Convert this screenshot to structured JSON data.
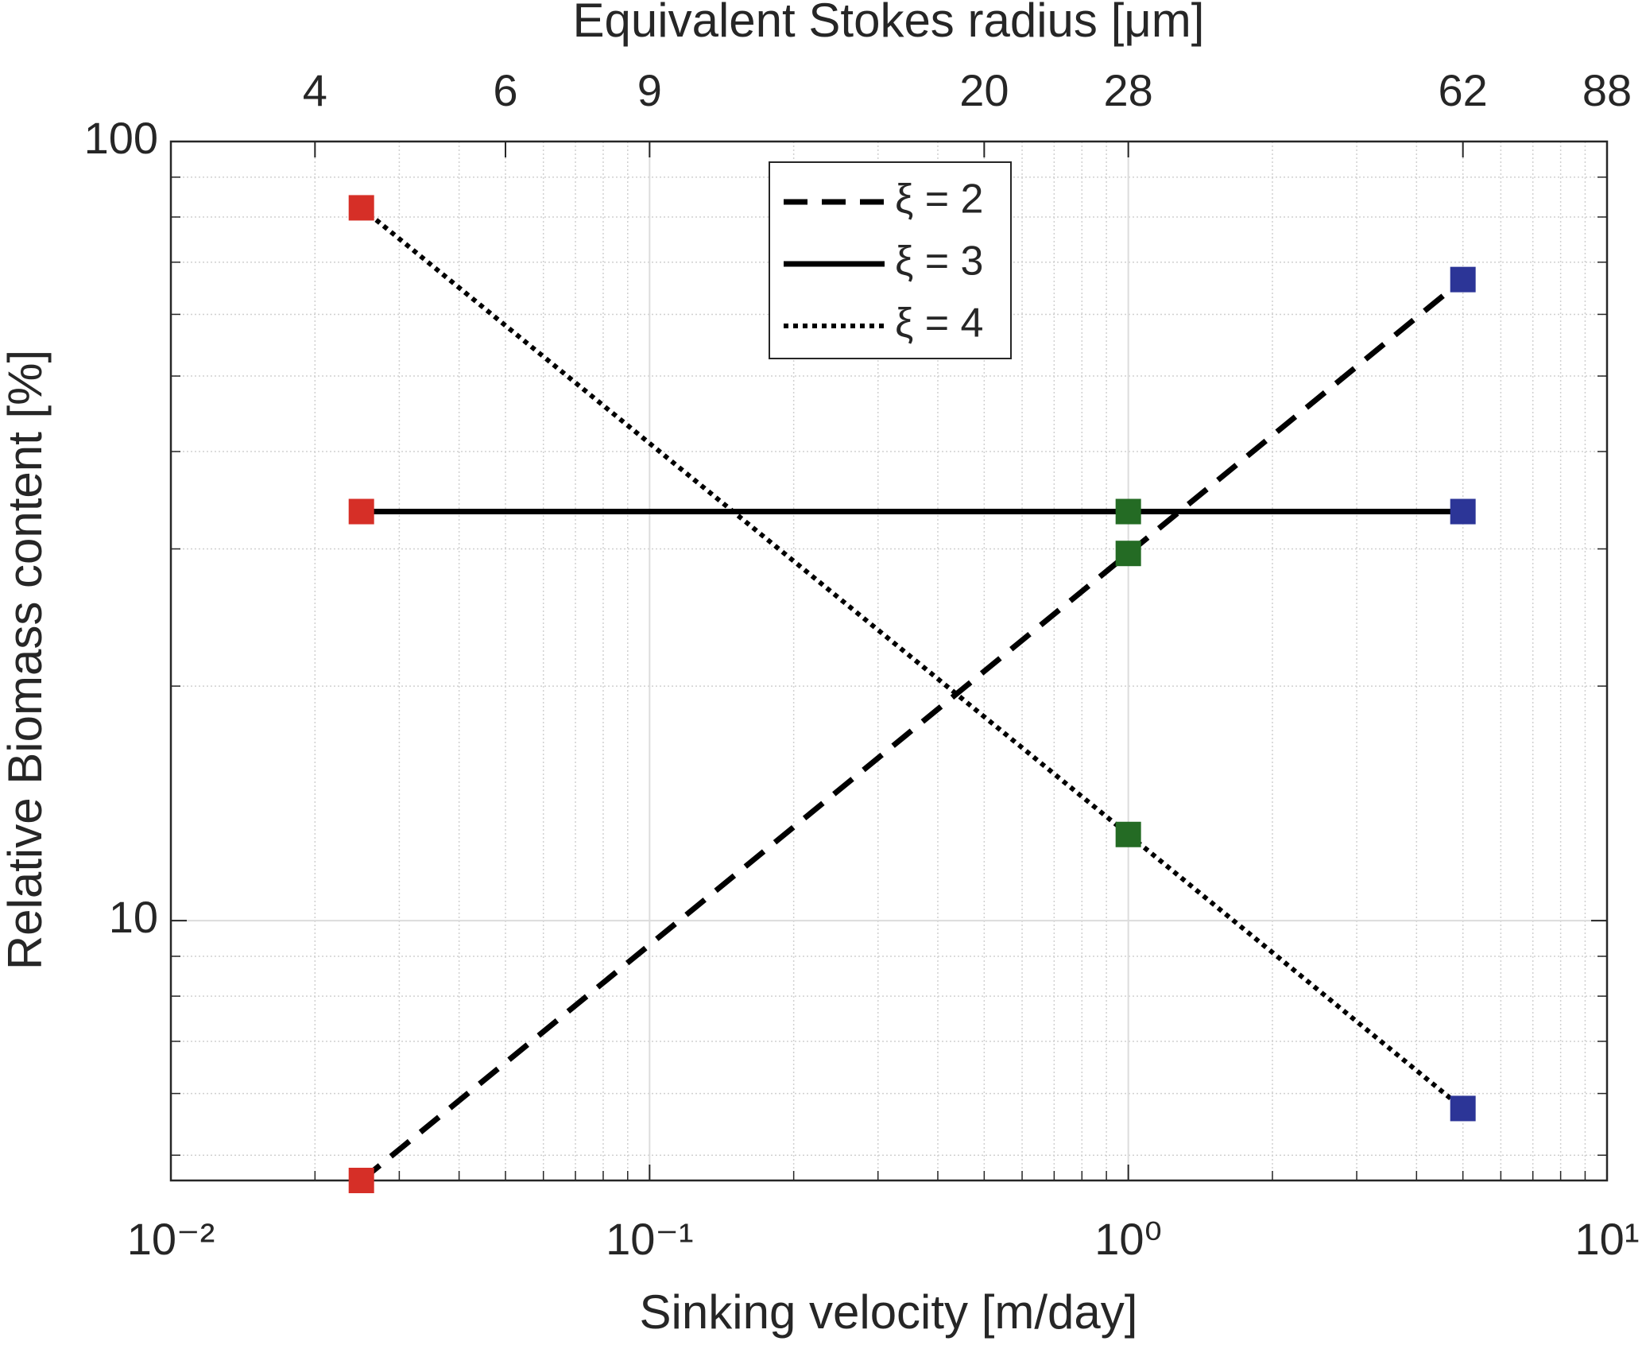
{
  "chart_data": {
    "type": "line",
    "x_label": "Sinking velocity [m/day]",
    "y_label": "Relative Biomass content [%]",
    "x2_label": "Equivalent Stokes radius [μm]",
    "xscale": "log",
    "yscale": "log",
    "xlim": [
      0.01,
      10
    ],
    "ylim": [
      4.64,
      100
    ],
    "xticks": [
      {
        "value": 0.01,
        "label": "10⁻²"
      },
      {
        "value": 0.1,
        "label": "10⁻¹"
      },
      {
        "value": 1,
        "label": "10⁰"
      },
      {
        "value": 10,
        "label": "10¹"
      }
    ],
    "yticks": [
      10,
      100
    ],
    "x2ticks": [
      {
        "value": 0.02,
        "label": "4"
      },
      {
        "value": 0.05,
        "label": "6"
      },
      {
        "value": 0.1,
        "label": "9"
      },
      {
        "value": 0.5,
        "label": "20"
      },
      {
        "value": 1,
        "label": "28"
      },
      {
        "value": 5,
        "label": "62"
      },
      {
        "value": 10,
        "label": "88"
      }
    ],
    "grid": true,
    "legend": "top-center",
    "x": [
      0.025,
      1,
      5
    ],
    "point_colors": [
      "#d62f27",
      "#246b24",
      "#2c3597"
    ],
    "series": [
      {
        "name": "ξ = 2",
        "color": "#000000",
        "dash": "dashed",
        "values": [
          4.64,
          29.6,
          66.5
        ]
      },
      {
        "name": "ξ = 3",
        "color": "#000000",
        "dash": "solid",
        "values": [
          33.5,
          33.5,
          33.5
        ]
      },
      {
        "name": "ξ = 4",
        "color": "#000000",
        "dash": "dotted",
        "values": [
          82.2,
          12.9,
          5.74
        ]
      }
    ]
  }
}
